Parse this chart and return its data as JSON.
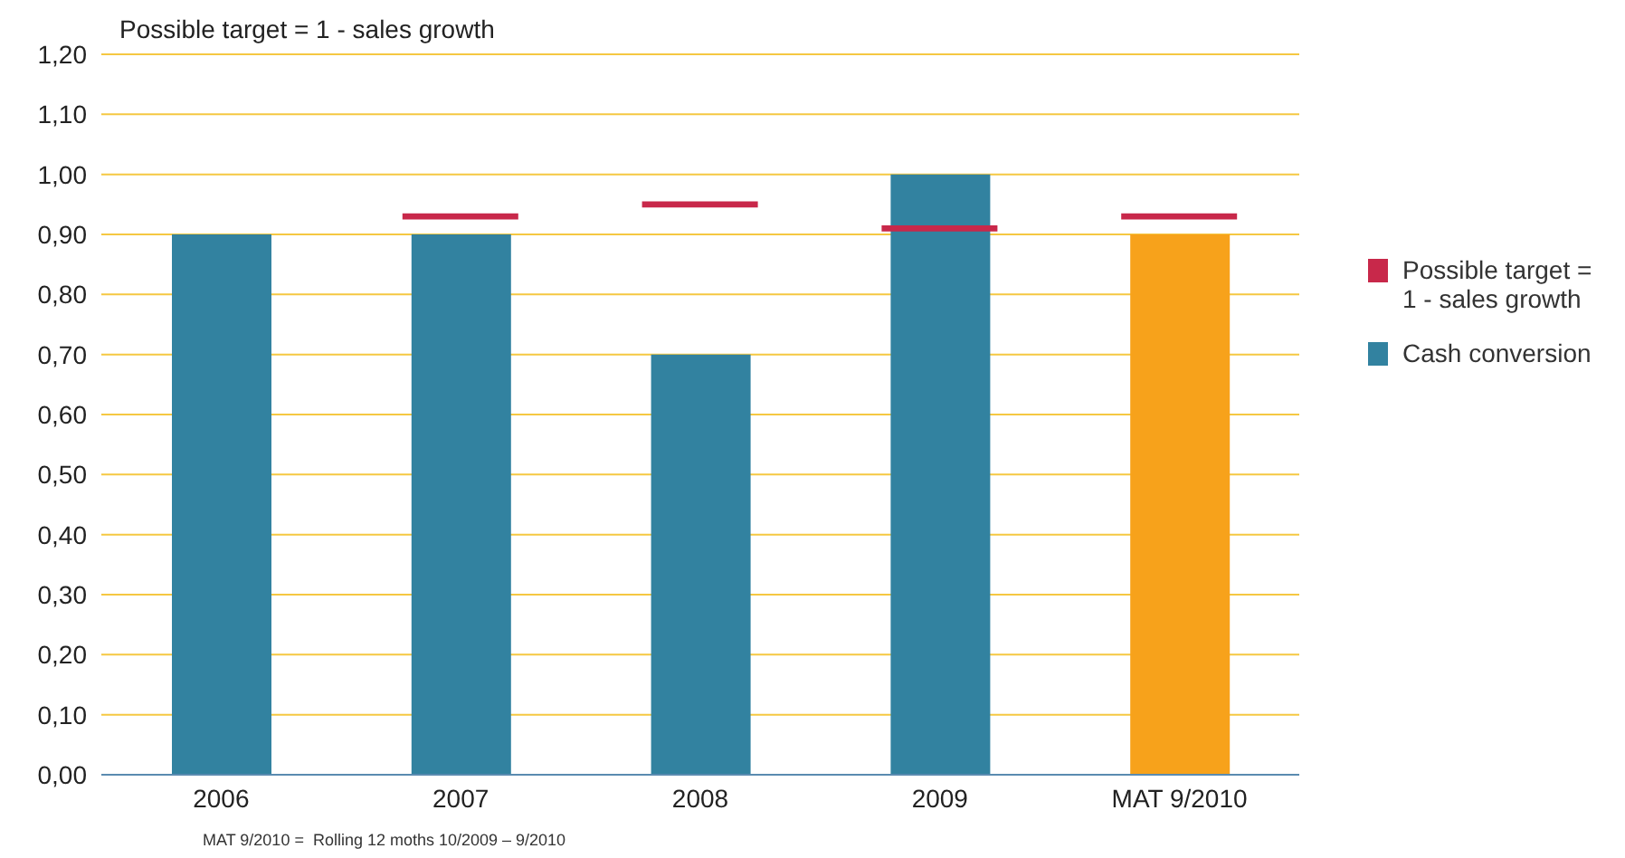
{
  "chart_data": {
    "type": "bar",
    "title": "Possible target = 1 - sales growth",
    "categories": [
      "2006",
      "2007",
      "2008",
      "2009",
      "MAT 9/2010"
    ],
    "series": [
      {
        "name": "Cash conversion",
        "type": "bar",
        "color": "#3282a0",
        "colors": [
          "#3282a0",
          "#3282a0",
          "#3282a0",
          "#3282a0",
          "#f7a21b"
        ],
        "values": [
          0.9,
          0.9,
          0.7,
          1.0,
          0.9
        ]
      },
      {
        "name": "Possible target = 1 - sales growth",
        "type": "bar",
        "color": "#c8284a",
        "base": [
          null,
          0.925,
          0.945,
          0.905,
          0.925
        ],
        "values": [
          null,
          0.01,
          0.01,
          0.01,
          0.01
        ]
      }
    ],
    "ylim": [
      0,
      1.2
    ],
    "yticks": [
      {
        "value": 0,
        "label": "0,00"
      },
      {
        "value": 0.1,
        "label": "0,10"
      },
      {
        "value": 0.2,
        "label": "0,20"
      },
      {
        "value": 0.3,
        "label": "0,30"
      },
      {
        "value": 0.4,
        "label": "0,40"
      },
      {
        "value": 0.5,
        "label": "0,50"
      },
      {
        "value": 0.6,
        "label": "0,60"
      },
      {
        "value": 0.7,
        "label": "0,70"
      },
      {
        "value": 0.8,
        "label": "0,80"
      },
      {
        "value": 0.9,
        "label": "0,90"
      },
      {
        "value": 1.0,
        "label": "1,00"
      },
      {
        "value": 1.1,
        "label": "1,10"
      },
      {
        "value": 1.2,
        "label": "1,20"
      }
    ],
    "grid": "y",
    "legend": "right",
    "annotations": [
      "MAT 9/2010 =  Rolling 12 moths 10/2009 – 9/2010"
    ]
  }
}
